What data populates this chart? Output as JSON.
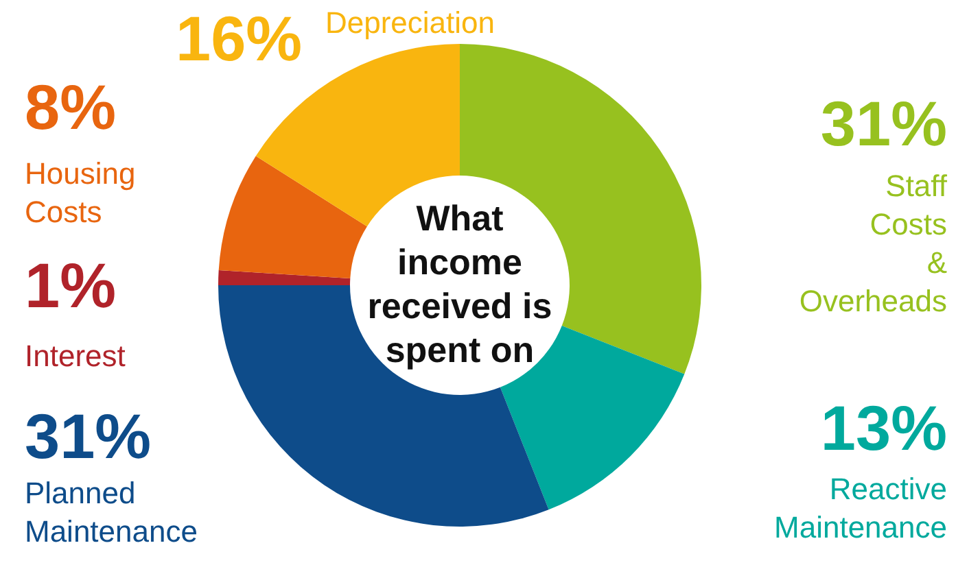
{
  "chart_data": {
    "type": "donut",
    "title": "What\nincome\nreceived is\nspent on",
    "categories": [
      "Staff Costs & Overheads",
      "Reactive Maintenance",
      "Planned Maintenance",
      "Interest",
      "Housing Costs",
      "Depreciation"
    ],
    "values": [
      31,
      13,
      31,
      1,
      8,
      16
    ],
    "value_labels": [
      "31%",
      "13%",
      "31%",
      "1%",
      "8%",
      "16%"
    ],
    "colors": [
      "#97c11f",
      "#00a99d",
      "#0e4c8a",
      "#b0232a",
      "#e8650f",
      "#f9b50f"
    ]
  }
}
